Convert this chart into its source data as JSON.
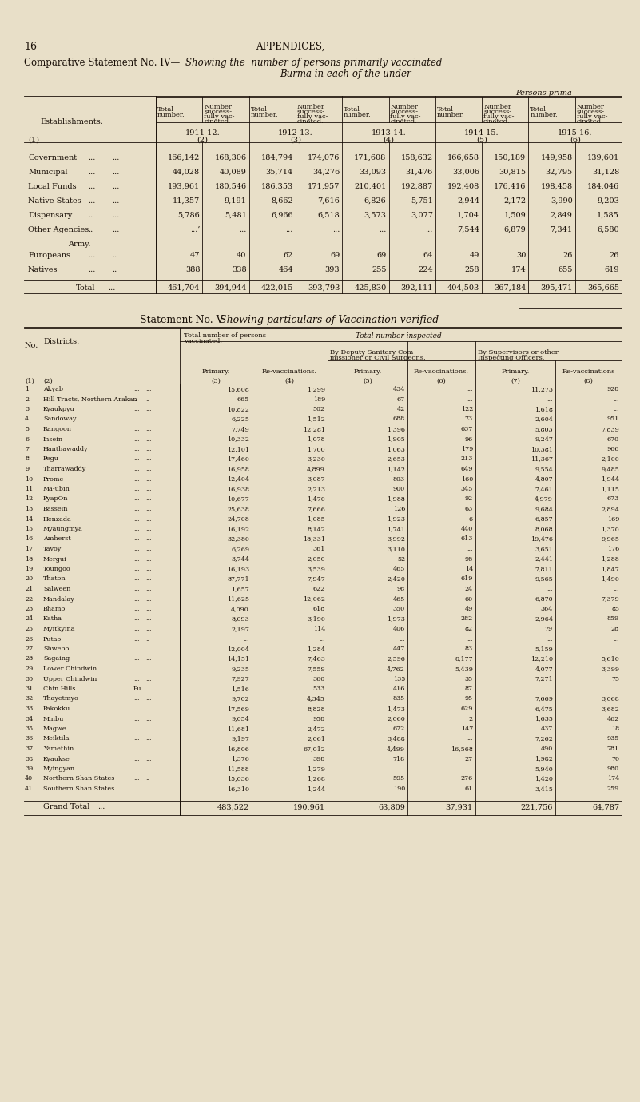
{
  "bg_color": "#e8dfc8",
  "page_number": "16",
  "appendices_title": "APPENDICES,",
  "title1_left": "Comparative Statement No. IV—",
  "title1_italic": "Showing the  number of persons primarily vaccinated",
  "title1b_italic": "Burma in each of the under",
  "table1_header_top": "Persons prima",
  "table1_col_header": "Establishments.",
  "table1_years": [
    "1911-12.",
    "1912-13.",
    "1913-14.",
    "1914-15.",
    "1915-16."
  ],
  "table1_year_nums": [
    "(2)",
    "(3)",
    "(4)",
    "(5)",
    "(6)"
  ],
  "table1_col1_label": "(1)",
  "table1_rows": [
    [
      "Government",
      "...",
      "...",
      "166,142",
      "168,306",
      "184,794",
      "174,076",
      "171,608",
      "158,632",
      "166,658",
      "150,189",
      "149,958",
      "139,601"
    ],
    [
      "Municipal",
      "...",
      "...",
      "44,028",
      "40,089",
      "35,714",
      "34,276",
      "33,093",
      "31,476",
      "33,006",
      "30,815",
      "32,795",
      "31,128"
    ],
    [
      "Local Funds",
      "...",
      "...",
      "193,961",
      "180,546",
      "186,353",
      "171,957",
      "210,401",
      "192,887",
      "192,408",
      "176,416",
      "198,458",
      "184,046"
    ],
    [
      "Native States",
      "...",
      "...",
      "11,357",
      "9,191",
      "8,662",
      "7,616",
      "6,826",
      "5,751",
      "2,944",
      "2,172",
      "3,990",
      "9,203"
    ],
    [
      "Dispensary",
      "..",
      "...",
      "5,786",
      "5,481",
      "6,966",
      "6,518",
      "3,573",
      "3,077",
      "1,704",
      "1,509",
      "2,849",
      "1,585"
    ],
    [
      "Other Agencies",
      "..",
      "...",
      "...’",
      "...",
      "...",
      "...",
      "...",
      "...",
      "7,544",
      "6,879",
      "7,341",
      "6,580"
    ]
  ],
  "table1_army_label": "Army.",
  "table1_army_rows": [
    [
      "Europeans",
      "...",
      "..",
      "47",
      "40",
      "62",
      "69",
      "69",
      "64",
      "49",
      "30",
      "26",
      "26"
    ],
    [
      "Natives",
      "...",
      "..",
      "388",
      "338",
      "464",
      "393",
      "255",
      "224",
      "258",
      "174",
      "655",
      "619"
    ]
  ],
  "table1_total_row": [
    "Total",
    "...",
    "461,704",
    "394,944",
    "422,015",
    "393,793",
    "425,830",
    "392,111",
    "404,503",
    "367,184",
    "395,471",
    "365,665"
  ],
  "title2_left": "Statement No. V—",
  "title2_italic": "Showing particulars of Vaccination verified",
  "table2_rows": [
    [
      "1",
      "Akyab",
      "...",
      "...",
      "15,608",
      "1,299",
      "434",
      "...",
      "11,273",
      "928"
    ],
    [
      "2",
      "Hill Tracts, Northern Arakan",
      "..",
      "..",
      "665",
      "189",
      "67",
      "...",
      "...",
      "..."
    ],
    [
      "3",
      "Kyaukpyu",
      "...",
      "...",
      "10,822",
      "502",
      "42",
      "122",
      "1,618",
      "..."
    ],
    [
      "4",
      "Sandoway",
      "...",
      "...",
      "6,225",
      "1,512",
      "688",
      "73",
      "2,604",
      "951"
    ],
    [
      "5",
      "Rangoon",
      "...",
      "...",
      "7,749",
      "12,281",
      "1,396",
      "637",
      "5,803",
      "7,839"
    ],
    [
      "6",
      "Insein",
      "...",
      "...",
      "10,332",
      "1,078",
      "1,905",
      "96",
      "9,247",
      "670"
    ],
    [
      "7",
      "Hanthawaddy",
      "...",
      "...",
      "12,101",
      "1,700",
      "1,063",
      "179",
      "10,381",
      "966"
    ],
    [
      "8",
      "Pegu",
      "...",
      "...",
      "17,460",
      "3,230",
      "2,653",
      "213",
      "11,367",
      "2,100"
    ],
    [
      "9",
      "Tharrawaddy",
      "...",
      "...",
      "16,958",
      "4,899",
      "1,142",
      "649",
      "9,554",
      "9,485"
    ],
    [
      "10",
      "Prome",
      "...",
      "...",
      "12,404",
      "3,087",
      "803",
      "160",
      "4,807",
      "1,944"
    ],
    [
      "11",
      "Ma-ubin",
      "...",
      "...",
      "16,938",
      "2,213",
      "900",
      "345",
      "7,461",
      "1,115"
    ],
    [
      "12",
      "PyapOn",
      "...",
      "...",
      "10,677",
      "1,470",
      "1,988",
      "92",
      "4,979",
      "673"
    ],
    [
      "13",
      "Bassein",
      "...",
      "...",
      "25,638",
      "7,666",
      "126",
      "63",
      "9,684",
      "2,894"
    ],
    [
      "14",
      "Henzada",
      "...",
      "...",
      "24,708",
      "1,085",
      "1,923",
      "6",
      "6,857",
      "169"
    ],
    [
      "15",
      "Myaungmya",
      "...",
      "...",
      "16,192",
      "8,142",
      "1,741",
      "440",
      "8,068",
      "1,370"
    ],
    [
      "16",
      "Amherst",
      "...",
      "...",
      "32,380",
      "18,331",
      "3,992",
      "613",
      "19,476",
      "9,965"
    ],
    [
      "17",
      "Tavoy",
      "...",
      "...",
      "6,269",
      "361",
      "3,110",
      "...",
      "3,651",
      "176"
    ],
    [
      "18",
      "Mergui",
      "...",
      "...",
      "3,744",
      "2,050",
      "52",
      "98",
      "2,441",
      "1,288"
    ],
    [
      "19",
      "Toungoo",
      "...",
      "...",
      "16,193",
      "3,539",
      "465",
      "14",
      "7,811",
      "1,847"
    ],
    [
      "20",
      "Thaton",
      "...",
      "...",
      "87,771",
      "7,947",
      "2,420",
      "619",
      "9,565",
      "1,490"
    ],
    [
      "21",
      "Salween",
      "...",
      "...",
      "1,657",
      "622",
      "98",
      "24",
      "...",
      "..."
    ],
    [
      "22",
      "Mandalay",
      "...",
      "...",
      "11,625",
      "12,062",
      "465",
      "60",
      "6,870",
      "7,379"
    ],
    [
      "23",
      "Bhamo",
      "...",
      "...",
      "4,090",
      "618",
      "350",
      "49",
      "364",
      "85"
    ],
    [
      "24",
      "Katha",
      "...",
      "...",
      "8,093",
      "3,190",
      "1,973",
      "282",
      "2,964",
      "859"
    ],
    [
      "25",
      "Myitkyina",
      "...",
      "...",
      "2,197",
      "114",
      "406",
      "82",
      "79",
      "28"
    ],
    [
      "26",
      "Putao",
      "...",
      "..",
      "...",
      "...",
      "...",
      "...",
      "...",
      "..."
    ],
    [
      "27",
      "Shwebo",
      "...",
      "...",
      "12,004",
      "1,284",
      "447",
      "83",
      "5,159",
      "..."
    ],
    [
      "28",
      "Sagaing",
      "...",
      "...",
      "14,151",
      "7,463",
      "2,596",
      "8,177",
      "12,210",
      "5,610"
    ],
    [
      "29",
      "Lower Chindwin",
      "...",
      "...",
      "9,235",
      "7,559",
      "4,762",
      "5,439",
      "4,077",
      "3,399"
    ],
    [
      "30",
      "Upper Chindwin",
      "...",
      "...",
      "7,927",
      "360",
      "135",
      "35",
      "7,271",
      "75"
    ],
    [
      "31",
      "Chin Hills",
      "Pu.",
      "...",
      "1,516",
      "533",
      "416",
      "87",
      "...",
      "..."
    ],
    [
      "32",
      "Thayetmyo",
      "...",
      "...",
      "9,702",
      "4,345",
      "835",
      "95",
      "7,669",
      "3,068"
    ],
    [
      "33",
      "Pakokku",
      "...",
      "...",
      "17,569",
      "8,828",
      "1,473",
      "629",
      "6,475",
      "3,682"
    ],
    [
      "34",
      "Minbu",
      "...",
      "...",
      "9,054",
      "958",
      "2,060",
      "2",
      "1,635",
      "462"
    ],
    [
      "35",
      "Magwe",
      "...",
      "...",
      "11,681",
      "2,472",
      "672",
      "147",
      "437",
      "18"
    ],
    [
      "36",
      "Meiktila",
      "...",
      "...",
      "9,197",
      "2,061",
      "3,488",
      "...",
      "7,262",
      "935"
    ],
    [
      "37",
      "Yamethin",
      "...",
      "...",
      "16,806",
      "67,012",
      "4,499",
      "16,568",
      "490",
      "781"
    ],
    [
      "38",
      "Kyaukse",
      "...",
      "...",
      "1,376",
      "398",
      "718",
      "27",
      "1,982",
      "70"
    ],
    [
      "39",
      "Myingyan",
      "...",
      "...",
      "11,588",
      "1,279",
      "...",
      "...",
      "5,940",
      "980"
    ],
    [
      "40",
      "Northern Shan States",
      "...",
      "..",
      "15,036",
      "1,268",
      "595",
      "276",
      "1,420",
      "174"
    ],
    [
      "41",
      "Southern Shan States",
      "...",
      "..",
      "16,310",
      "1,244",
      "190",
      "61",
      "3,415",
      "259"
    ]
  ],
  "table2_grand_total": [
    "Grand Total",
    "...",
    "483,522",
    "190,961",
    "63,809",
    "37,931",
    "221,756",
    "64,787"
  ]
}
